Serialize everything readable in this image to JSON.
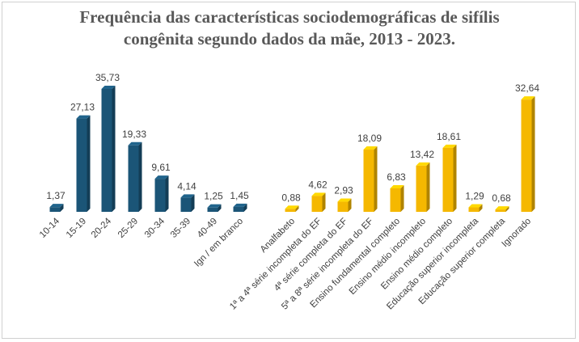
{
  "chart_data": {
    "type": "bar",
    "title_lines": [
      "Frequência das características sociodemográficas de sifílis",
      "congênita segundo dados da mãe, 2013 - 2023."
    ],
    "colors": {
      "age": "#1b5577",
      "schooling": "#f5b800"
    },
    "ylim": [
      0,
      40
    ],
    "grid": false,
    "legend": "none",
    "groups": [
      {
        "color_key": "age",
        "categories": [
          "10-14",
          "15-19",
          "20-24",
          "25-29",
          "30-34",
          "35-39",
          "40-49",
          "Ign / em branco"
        ],
        "values": [
          1.37,
          27.13,
          35.73,
          19.33,
          9.61,
          4.14,
          1.25,
          1.45
        ],
        "labels": [
          "1,37",
          "27,13",
          "35,73",
          "19,33",
          "9,61",
          "4,14",
          "1,25",
          "1,45"
        ]
      },
      {
        "color_key": "schooling",
        "categories": [
          "Analfabeto",
          "1ª a 4ª série incompleta do EF",
          "4ª série completa do EF",
          "5ª a 8ª série incompleta do EF",
          "Ensino fundamental completo",
          "Ensino médio incompleto",
          "Ensino médio completo",
          "Educação superior incompleta",
          "Educação superior completa",
          "Ignorado"
        ],
        "values": [
          0.88,
          4.62,
          2.93,
          18.09,
          6.83,
          13.42,
          18.61,
          1.29,
          0.68,
          32.64
        ],
        "labels": [
          "0,88",
          "4,62",
          "2,93",
          "18,09",
          "6,83",
          "13,42",
          "18,61",
          "1,29",
          "0,68",
          "32,64"
        ]
      }
    ]
  }
}
